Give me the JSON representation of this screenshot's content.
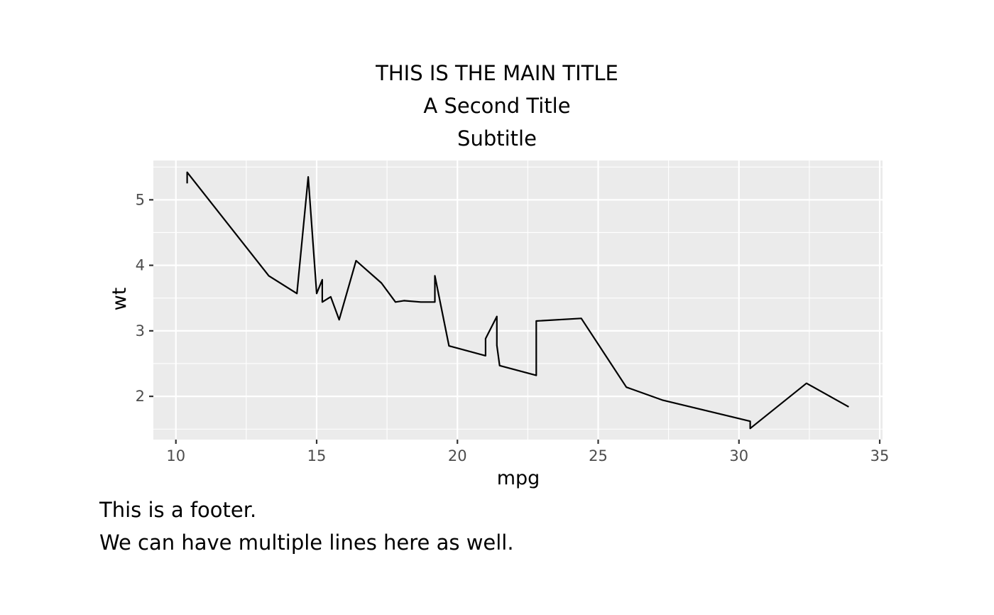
{
  "header": {
    "main_title": "THIS IS THE MAIN TITLE",
    "second_title": "A Second Title",
    "subtitle": "Subtitle"
  },
  "footer": {
    "line1": "This is a footer.",
    "line2": "We can have multiple lines here as well."
  },
  "chart_data": {
    "type": "line",
    "xlabel": "mpg",
    "ylabel": "wt",
    "xlim": [
      9.2,
      35.1
    ],
    "ylim": [
      1.34,
      5.6
    ],
    "x_ticks": [
      10,
      15,
      20,
      25,
      30,
      35
    ],
    "y_ticks": [
      2,
      3,
      4,
      5
    ],
    "grid": true,
    "colors": {
      "panel": "#ebebeb",
      "grid": "#ffffff",
      "line": "#000000",
      "tick_text": "#4d4d4d"
    },
    "series": [
      {
        "x": [
          10.4,
          10.4,
          13.3,
          14.3,
          14.7,
          15.0,
          15.2,
          15.2,
          15.5,
          15.8,
          16.4,
          17.3,
          17.8,
          18.1,
          18.7,
          19.2,
          19.2,
          19.7,
          21.0,
          21.0,
          21.4,
          21.4,
          21.5,
          22.8,
          22.8,
          24.4,
          26.0,
          27.3,
          30.4,
          30.4,
          32.4,
          33.9
        ],
        "y": [
          5.25,
          5.42,
          3.84,
          3.57,
          5.35,
          3.57,
          3.78,
          3.44,
          3.52,
          3.17,
          4.07,
          3.73,
          3.44,
          3.46,
          3.44,
          3.44,
          3.84,
          2.77,
          2.62,
          2.88,
          3.22,
          2.78,
          2.47,
          2.32,
          3.15,
          3.19,
          2.14,
          1.94,
          1.62,
          1.51,
          2.2,
          1.84
        ]
      }
    ]
  }
}
